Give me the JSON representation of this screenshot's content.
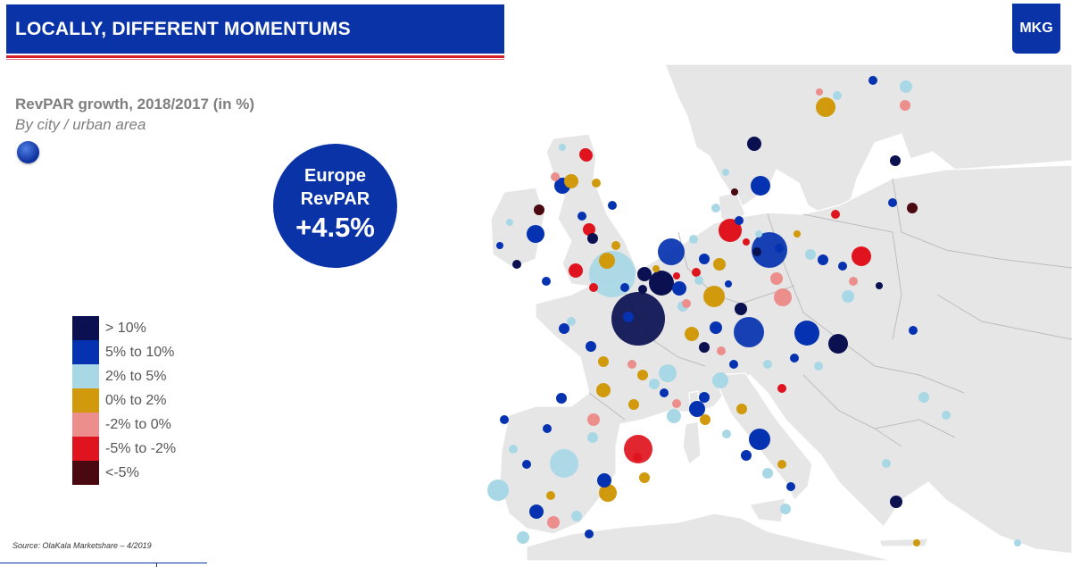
{
  "header": {
    "title": "LOCALLY, DIFFERENT MOMENTUMS",
    "logo": "MKG"
  },
  "subtitle": {
    "line1": "RevPAR growth, 2018/2017 (in %)",
    "line2": "By city / urban area",
    "flag_icon": "eu-flag-icon"
  },
  "callout": {
    "line1": "Europe",
    "line2": "RevPAR",
    "value": "+4.5%"
  },
  "legend": [
    {
      "label": "> 10%",
      "color": "#0a1050"
    },
    {
      "label": "5% to 10%",
      "color": "#0532b0"
    },
    {
      "label": "2% to 5%",
      "color": "#a8d8e6"
    },
    {
      "label": "0% to 2%",
      "color": "#d09a0c"
    },
    {
      "label": "-2% to 0%",
      "color": "#ec8f8c"
    },
    {
      "label": "-5% to -2%",
      "color": "#e0141e"
    },
    {
      "label": "<-5%",
      "color": "#4a0810"
    }
  ],
  "source": "Source: OlaKala Marketshare – 4/2019",
  "colors": {
    "brand": "#0b33a8",
    "accent_red": "#d5202b",
    "land": "#e6e6e6",
    "sea": "#ffffff"
  }
}
